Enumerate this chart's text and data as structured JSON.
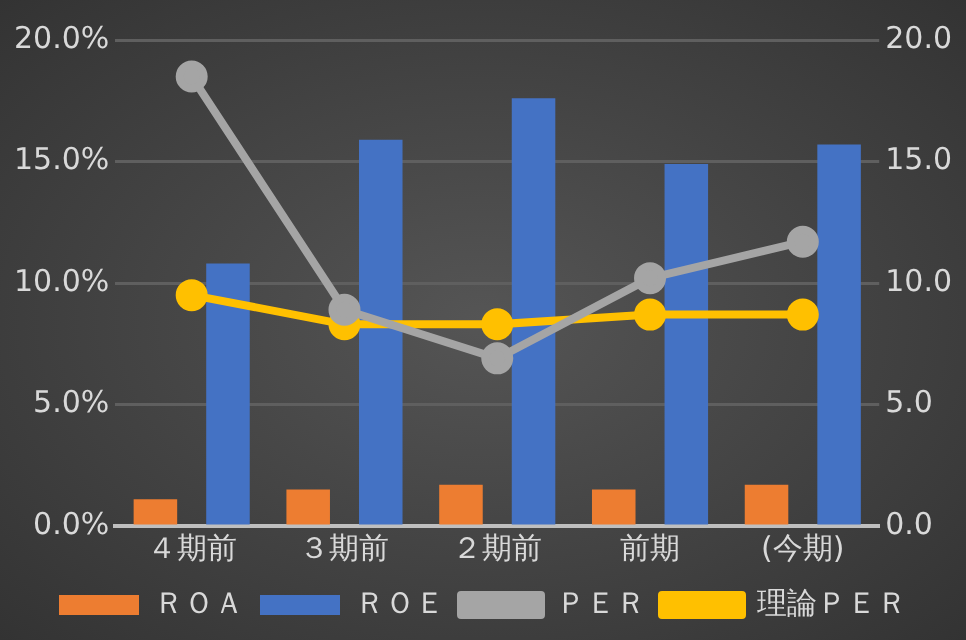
{
  "chart_data": {
    "type": "bar",
    "categories": [
      "４期前",
      "３期前",
      "２期前",
      "前期",
      "(今期)"
    ],
    "series": [
      {
        "name": "ＲＯＡ",
        "color": "#ed7d31",
        "values": [
          1.1,
          1.5,
          1.7,
          1.5,
          1.7
        ]
      },
      {
        "name": "ＲＯＥ",
        "color": "#4472c4",
        "values": [
          10.8,
          15.9,
          17.6,
          14.9,
          15.7
        ]
      },
      {
        "name": "ＰＥＲ",
        "type": "line",
        "axis": "y2",
        "color": "#a5a5a5",
        "values": [
          18.5,
          8.9,
          6.9,
          10.2,
          11.7
        ]
      },
      {
        "name": "理論ＰＥＲ",
        "type": "line",
        "axis": "y2",
        "color": "#ffc000",
        "values": [
          9.5,
          8.3,
          8.3,
          8.7,
          8.7
        ]
      }
    ],
    "ylim": [
      0,
      20
    ],
    "yticks": [
      {
        "value": 0,
        "label": "0.0%"
      },
      {
        "value": 5,
        "label": "5.0%"
      },
      {
        "value": 10,
        "label": "10.0%"
      },
      {
        "value": 15,
        "label": "15.0%"
      },
      {
        "value": 20,
        "label": "20.0%"
      }
    ],
    "y2lim": [
      0,
      20
    ],
    "y2ticks": [
      {
        "value": 0,
        "label": "0.0"
      },
      {
        "value": 5,
        "label": "5.0"
      },
      {
        "value": 10,
        "label": "10.0"
      },
      {
        "value": 15,
        "label": "15.0"
      },
      {
        "value": 20,
        "label": "20.0"
      }
    ],
    "grid": "y",
    "legend": "bottom",
    "marker": "circle"
  }
}
